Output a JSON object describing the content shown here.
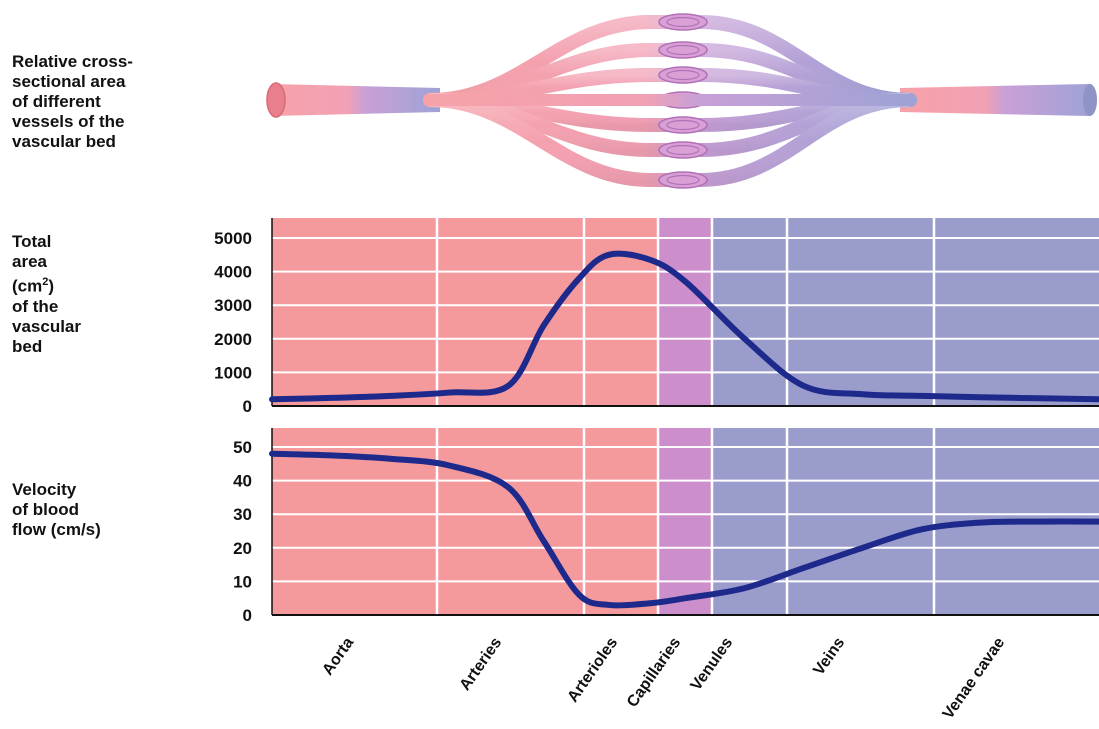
{
  "labels": {
    "diagram": "Relative cross-\nsectional area\nof different\nvessels of the\nvascular bed",
    "area_pre": "Total\narea\n(cm",
    "area_sup": "2",
    "area_post": ")\nof the\nvascular\nbed",
    "velocity": "Velocity\nof blood\nflow (cm/s)"
  },
  "colors": {
    "arterial": "#f4999c",
    "capillary": "#cc8fcb",
    "venous": "#9a9dcc",
    "curve": "#1d2a8c",
    "grid": "#ffffff"
  },
  "chart_data": [
    {
      "type": "line",
      "title": "",
      "ylabel": "Total area (cm2) of the vascular bed",
      "ylim": [
        0,
        5000
      ],
      "yticks": [
        0,
        1000,
        2000,
        3000,
        4000,
        5000
      ],
      "regions": [
        "Aorta",
        "Arteries",
        "Arterioles",
        "Capillaries",
        "Venules",
        "Veins",
        "Venae cavae"
      ],
      "x": [
        0,
        0.5,
        1,
        1.5,
        2,
        2.3,
        2.6,
        2.85,
        3.2,
        3.5,
        4.0,
        4.5,
        5.0,
        5.5,
        6.0,
        6.5,
        7.0
      ],
      "values": [
        200,
        240,
        300,
        400,
        600,
        2400,
        3800,
        4500,
        4350,
        3700,
        2000,
        600,
        350,
        300,
        260,
        230,
        200
      ]
    },
    {
      "type": "line",
      "title": "",
      "ylabel": "Velocity of blood flow (cm/s)",
      "ylim": [
        0,
        55
      ],
      "yticks": [
        0,
        10,
        20,
        30,
        40,
        50
      ],
      "regions": [
        "Aorta",
        "Arteries",
        "Arterioles",
        "Capillaries",
        "Venules",
        "Veins",
        "Venae cavae"
      ],
      "x": [
        0,
        0.5,
        1,
        1.5,
        2,
        2.3,
        2.6,
        2.85,
        3.2,
        3.5,
        4.0,
        4.5,
        5.0,
        5.5,
        6.0,
        6.5,
        7.0
      ],
      "values": [
        48,
        47.5,
        46.5,
        44.5,
        38,
        22,
        6,
        3,
        3.5,
        5,
        8,
        14,
        20,
        25.5,
        27.5,
        27.8,
        27.8
      ]
    }
  ],
  "categories": [
    "Aorta",
    "Arteries",
    "Arterioles",
    "Capillaries",
    "Venules",
    "Veins",
    "Venae cavae"
  ]
}
